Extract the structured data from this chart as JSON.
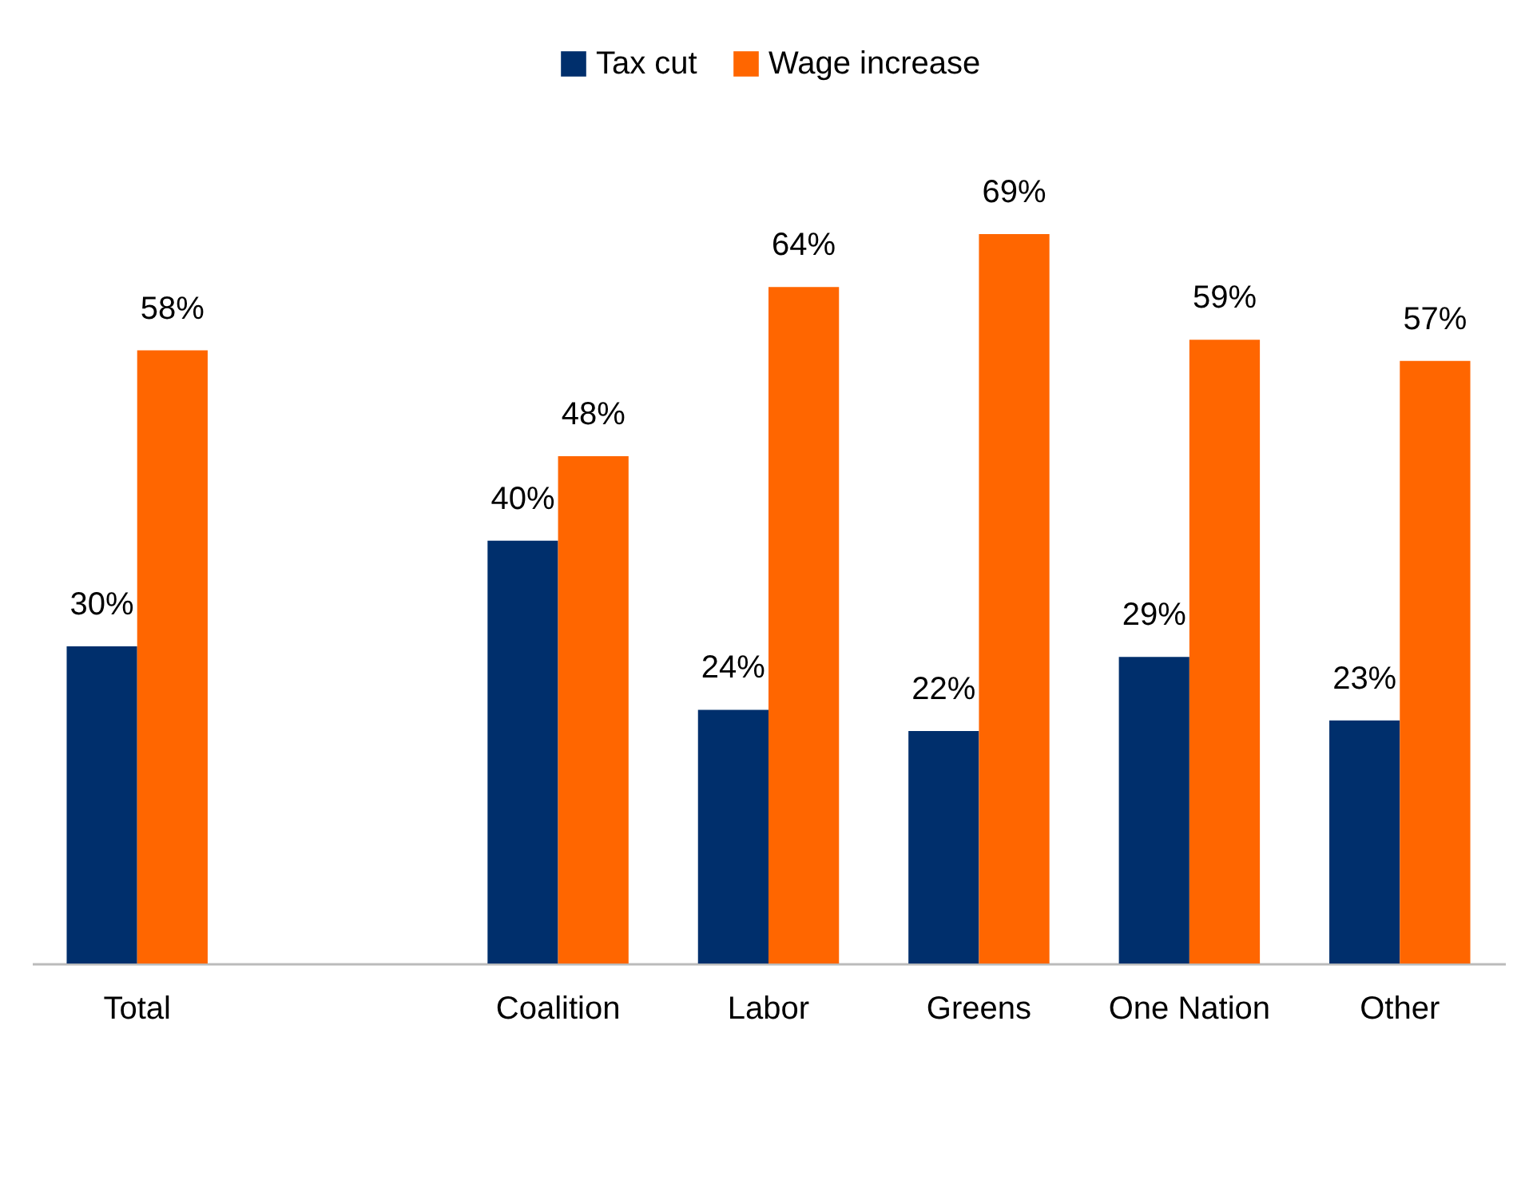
{
  "chart_data": {
    "type": "bar",
    "categories": [
      "Total",
      null,
      "Coalition",
      "Labor",
      "Greens",
      "One Nation",
      "Other"
    ],
    "series": [
      {
        "name": "Tax cut",
        "color": "#002f6c",
        "values": [
          30,
          null,
          40,
          24,
          22,
          29,
          23
        ],
        "value_labels": [
          "30%",
          null,
          "40%",
          "24%",
          "22%",
          "29%",
          "23%"
        ]
      },
      {
        "name": "Wage increase",
        "color": "#ff6600",
        "values": [
          58,
          null,
          48,
          64,
          69,
          59,
          57
        ],
        "value_labels": [
          "58%",
          null,
          "48%",
          "64%",
          "69%",
          "59%",
          "57%"
        ]
      }
    ],
    "legend": "top",
    "grid": false
  }
}
